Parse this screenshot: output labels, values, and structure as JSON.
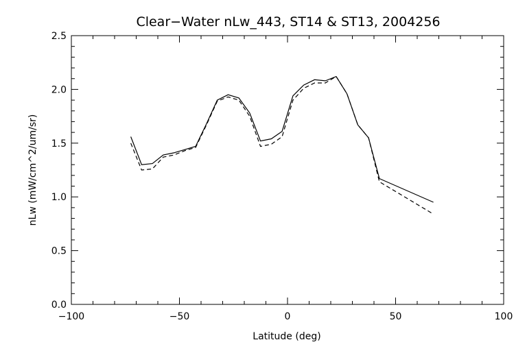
{
  "chart_data": {
    "type": "line",
    "title": "Clear−Water nLw_443, ST14 & ST13, 2004256",
    "xlabel": "Latitude (deg)",
    "ylabel": "nLw (mW/cm^2/um/sr)",
    "xlim": [
      -100,
      100
    ],
    "ylim": [
      0.0,
      2.5
    ],
    "xticks": [
      -100,
      -50,
      0,
      50,
      100
    ],
    "xtick_labels": [
      "−100",
      "−50",
      "0",
      "50",
      "100"
    ],
    "yticks": [
      0.0,
      0.5,
      1.0,
      1.5,
      2.0,
      2.5
    ],
    "ytick_labels": [
      "0.0",
      "0.5",
      "1.0",
      "1.5",
      "2.0",
      "2.5"
    ],
    "grid": false,
    "series": [
      {
        "style": "solid",
        "color": "#000000",
        "x": [
          -72.5,
          -67.5,
          -62.5,
          -57.5,
          -52.5,
          -47.5,
          -42.5,
          -37.5,
          -32.5,
          -27.5,
          -22.5,
          -17.5,
          -12.5,
          -7.5,
          -2.5,
          2.5,
          7.5,
          12.5,
          17.5,
          22.5,
          27.5,
          32.5,
          37.5,
          42.5,
          67.5
        ],
        "y": [
          1.56,
          1.3,
          1.31,
          1.39,
          1.41,
          1.44,
          1.47,
          1.68,
          1.9,
          1.95,
          1.92,
          1.78,
          1.52,
          1.54,
          1.61,
          1.94,
          2.04,
          2.09,
          2.08,
          2.12,
          1.96,
          1.67,
          1.55,
          1.17,
          0.95
        ]
      },
      {
        "style": "dashed",
        "color": "#000000",
        "x": [
          -72.5,
          -67.5,
          -62.5,
          -57.5,
          -52.5,
          -47.5,
          -42.5,
          -37.5,
          -32.5,
          -27.5,
          -22.5,
          -17.5,
          -12.5,
          -7.5,
          -2.5,
          2.5,
          7.5,
          12.5,
          17.5,
          22.5,
          27.5,
          32.5,
          37.5,
          42.5,
          67.5
        ],
        "y": [
          1.5,
          1.25,
          1.26,
          1.37,
          1.39,
          1.43,
          1.46,
          1.67,
          1.89,
          1.93,
          1.9,
          1.75,
          1.47,
          1.49,
          1.56,
          1.9,
          2.01,
          2.06,
          2.06,
          2.12,
          1.96,
          1.67,
          1.55,
          1.14,
          0.84
        ]
      }
    ]
  }
}
